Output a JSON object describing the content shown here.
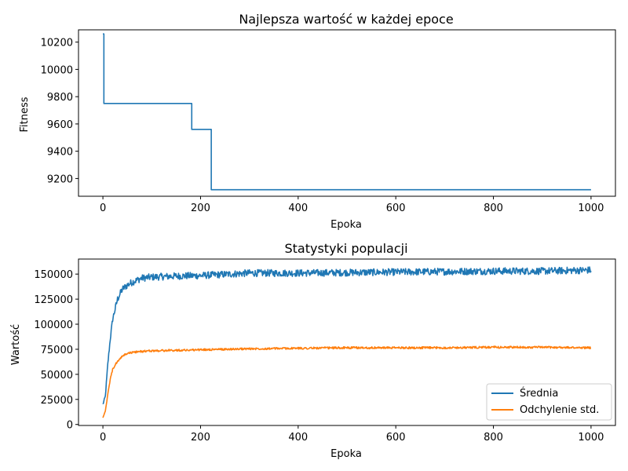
{
  "chart_data": [
    {
      "type": "line",
      "title": "Najlepsza wartość w każdej epoce",
      "xlabel": "Epoka",
      "ylabel": "Fitness",
      "xlim": [
        -50,
        1050
      ],
      "ylim": [
        9070,
        10290
      ],
      "xticks": [
        0,
        200,
        400,
        600,
        800,
        1000
      ],
      "yticks": [
        9200,
        9400,
        9600,
        9800,
        10000,
        10200
      ],
      "grid": false,
      "series": [
        {
          "color": "#1f77b4",
          "step_points": [
            [
              0,
              10260
            ],
            [
              2,
              9750
            ],
            [
              182,
              9560
            ],
            [
              222,
              9118
            ],
            [
              1000,
              9118
            ]
          ]
        }
      ]
    },
    {
      "type": "line",
      "title": "Statystyki populacji",
      "xlabel": "Epoka",
      "ylabel": "Wartość",
      "xlim": [
        -50,
        1050
      ],
      "ylim": [
        -1000,
        165000
      ],
      "xticks": [
        0,
        200,
        400,
        600,
        800,
        1000
      ],
      "yticks": [
        0,
        25000,
        50000,
        75000,
        100000,
        125000,
        150000
      ],
      "grid": false,
      "legend": "lower-right",
      "series": [
        {
          "name": "Średnia",
          "color": "#1f77b4",
          "points": [
            [
              0,
              20000
            ],
            [
              5,
              28000
            ],
            [
              10,
              60000
            ],
            [
              15,
              85000
            ],
            [
              20,
              105000
            ],
            [
              25,
              115000
            ],
            [
              30,
              125000
            ],
            [
              35,
              130000
            ],
            [
              40,
              135000
            ],
            [
              50,
              139000
            ],
            [
              60,
              142000
            ],
            [
              80,
              146000
            ],
            [
              100,
              147000
            ],
            [
              150,
              148000
            ],
            [
              200,
              148500
            ],
            [
              300,
              151000
            ],
            [
              400,
              151000
            ],
            [
              500,
              151500
            ],
            [
              600,
              152000
            ],
            [
              700,
              152500
            ],
            [
              800,
              153000
            ],
            [
              900,
              153000
            ],
            [
              1000,
              154000
            ]
          ],
          "noise": 3500
        },
        {
          "name": "Odchylenie std.",
          "color": "#ff7f0e",
          "points": [
            [
              0,
              7000
            ],
            [
              5,
              13000
            ],
            [
              10,
              30000
            ],
            [
              15,
              45000
            ],
            [
              20,
              55000
            ],
            [
              30,
              63000
            ],
            [
              40,
              68000
            ],
            [
              50,
              71000
            ],
            [
              70,
              72500
            ],
            [
              100,
              73500
            ],
            [
              200,
              74500
            ],
            [
              300,
              75500
            ],
            [
              400,
              76000
            ],
            [
              500,
              76500
            ],
            [
              600,
              76500
            ],
            [
              700,
              76500
            ],
            [
              800,
              77000
            ],
            [
              900,
              77000
            ],
            [
              1000,
              76500
            ]
          ],
          "noise": 1000
        }
      ]
    }
  ]
}
